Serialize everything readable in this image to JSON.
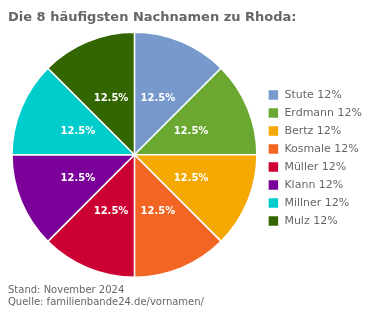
{
  "chart_data": {
    "type": "pie",
    "title": "Die 8 häufigsten Nachnamen zu Rhoda:",
    "categories": [
      "Stute 12%",
      "Erdmann 12%",
      "Bertz 12%",
      "Kosmale 12%",
      "Müller 12%",
      "Klann 12%",
      "Millner 12%",
      "Mulz 12%"
    ],
    "values": [
      12.5,
      12.5,
      12.5,
      12.5,
      12.5,
      12.5,
      12.5,
      12.5
    ],
    "value_labels": [
      "12.5%",
      "12.5%",
      "12.5%",
      "12.5%",
      "12.5%",
      "12.5%",
      "12.5%",
      "12.5%"
    ],
    "colors": [
      "#7799CC",
      "#6BA832",
      "#F5A800",
      "#F26522",
      "#CC0033",
      "#7B0099",
      "#00CCCC",
      "#336600"
    ],
    "data_labels": true,
    "legend": "right",
    "annotations": [
      "Stand: November 2024",
      "Quelle: familienbande24.de/vornamen/"
    ]
  }
}
